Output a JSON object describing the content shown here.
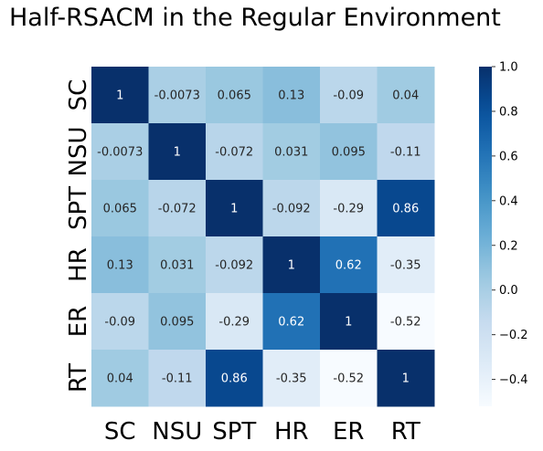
{
  "chart_data": {
    "type": "heatmap",
    "title": "Half-RSACM in the Regular Environment",
    "xlabel": "",
    "ylabel": "",
    "categories": [
      "SC",
      "NSU",
      "SPT",
      "HR",
      "ER",
      "RT"
    ],
    "values": [
      [
        1,
        -0.0073,
        0.065,
        0.13,
        -0.09,
        0.04
      ],
      [
        -0.0073,
        1,
        -0.072,
        0.031,
        0.095,
        -0.11
      ],
      [
        0.065,
        -0.072,
        1,
        -0.092,
        -0.29,
        0.86
      ],
      [
        0.13,
        0.031,
        -0.092,
        1,
        0.62,
        -0.35
      ],
      [
        -0.09,
        0.095,
        -0.29,
        0.62,
        1,
        -0.52
      ],
      [
        0.04,
        -0.11,
        0.86,
        -0.35,
        -0.52,
        1
      ]
    ],
    "cell_labels": [
      [
        "1",
        "-0.0073",
        "0.065",
        "0.13",
        "-0.09",
        "0.04"
      ],
      [
        "-0.0073",
        "1",
        "-0.072",
        "0.031",
        "0.095",
        "-0.11"
      ],
      [
        "0.065",
        "-0.072",
        "1",
        "-0.092",
        "-0.29",
        "0.86"
      ],
      [
        "0.13",
        "0.031",
        "-0.092",
        "1",
        "0.62",
        "-0.35"
      ],
      [
        "-0.09",
        "0.095",
        "-0.29",
        "0.62",
        "1",
        "-0.52"
      ],
      [
        "0.04",
        "-0.11",
        "0.86",
        "-0.35",
        "-0.52",
        "1"
      ]
    ],
    "colorbar": {
      "range": [
        -0.52,
        1.0
      ],
      "ticks": [
        -0.4,
        -0.2,
        0.0,
        0.2,
        0.4,
        0.6,
        0.8,
        1.0
      ],
      "tick_labels": [
        "−0.4",
        "−0.2",
        "0.0",
        "0.2",
        "0.4",
        "0.6",
        "0.8",
        "1.0"
      ],
      "colormap": "Blues"
    },
    "grid": false,
    "legend": "colorbar-right"
  }
}
